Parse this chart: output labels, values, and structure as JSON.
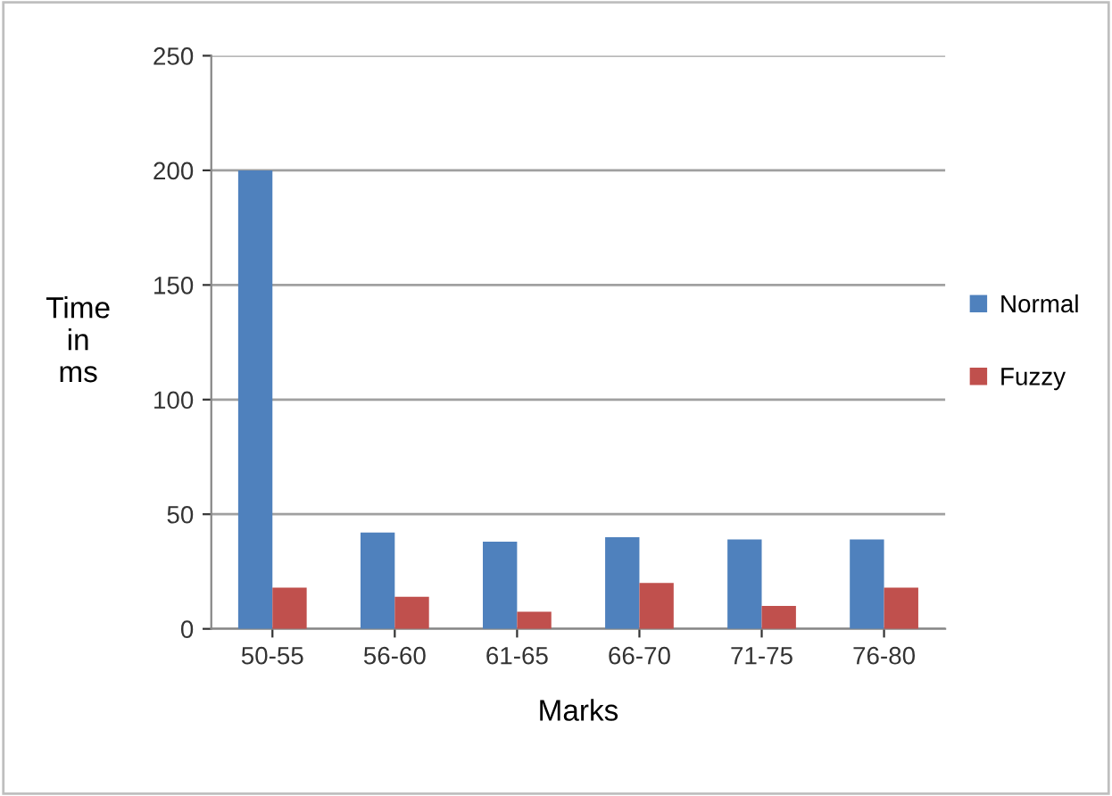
{
  "chart_data": {
    "type": "bar",
    "xlabel": "Marks",
    "ylabel": "Time\nin\nms",
    "categories": [
      "50-55",
      "56-60",
      "61-65",
      "66-70",
      "71-75",
      "76-80"
    ],
    "series": [
      {
        "name": "Normal",
        "color": "#4f81bd",
        "values": [
          200,
          42,
          38,
          40,
          39,
          39
        ]
      },
      {
        "name": "Fuzzy",
        "color": "#c0504d",
        "values": [
          18,
          14,
          7.5,
          20,
          10,
          18
        ]
      }
    ],
    "ylim": [
      0,
      250
    ],
    "yticks": [
      0,
      50,
      100,
      150,
      200,
      250
    ],
    "grid": "y",
    "legend": "right"
  }
}
